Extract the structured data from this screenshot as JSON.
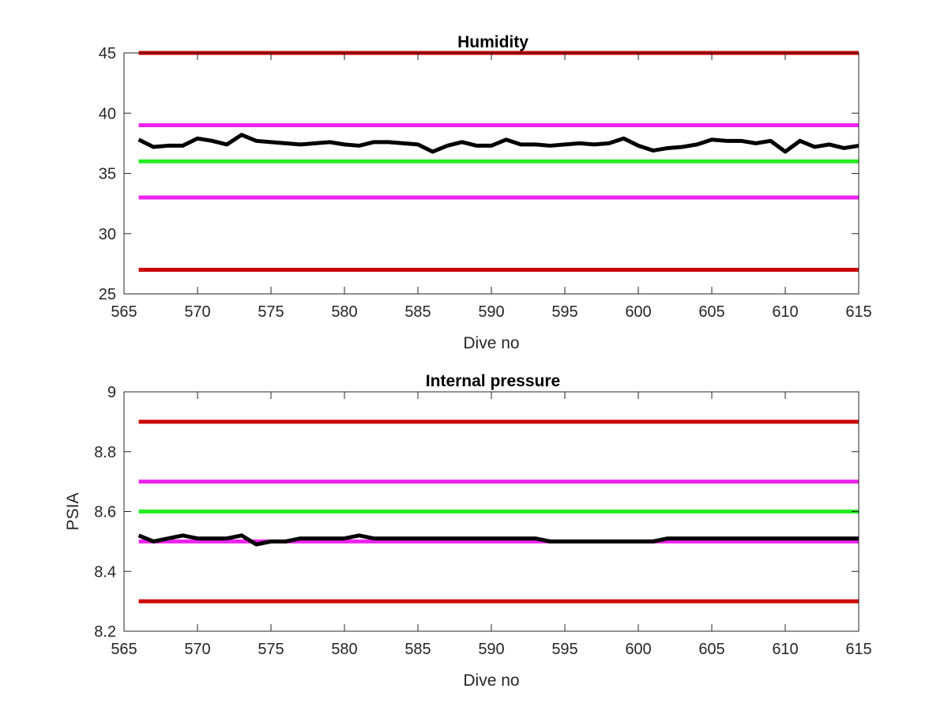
{
  "colors": {
    "limit_red": "#cc0000",
    "warn_magenta": "#ee22ee",
    "target_green": "#22ee22",
    "data_black": "#000000",
    "axis": "#262626"
  },
  "chart_data": [
    {
      "type": "line",
      "title": "Humidity",
      "xlabel": "Dive no",
      "ylabel": "",
      "xlim": [
        565,
        615
      ],
      "ylim": [
        25,
        45
      ],
      "xticks": [
        565,
        570,
        575,
        580,
        585,
        590,
        595,
        600,
        605,
        610,
        615
      ],
      "yticks": [
        25,
        30,
        35,
        40,
        45
      ],
      "grid": false,
      "reference_lines": [
        {
          "y": 45,
          "color": "red"
        },
        {
          "y": 39,
          "color": "magenta"
        },
        {
          "y": 36,
          "color": "green"
        },
        {
          "y": 33,
          "color": "magenta"
        },
        {
          "y": 27,
          "color": "red"
        }
      ],
      "series": [
        {
          "color": "black",
          "x": [
            566,
            567,
            568,
            569,
            570,
            571,
            572,
            573,
            574,
            575,
            576,
            577,
            578,
            579,
            580,
            581,
            582,
            583,
            584,
            585,
            586,
            587,
            588,
            589,
            590,
            591,
            592,
            593,
            594,
            595,
            596,
            597,
            598,
            599,
            600,
            601,
            602,
            603,
            604,
            605,
            606,
            607,
            608,
            609,
            610,
            611,
            612,
            613,
            614,
            615
          ],
          "y": [
            37.8,
            37.2,
            37.3,
            37.3,
            37.9,
            37.7,
            37.4,
            38.2,
            37.7,
            37.6,
            37.5,
            37.4,
            37.5,
            37.6,
            37.4,
            37.3,
            37.6,
            37.6,
            37.5,
            37.4,
            36.8,
            37.3,
            37.6,
            37.3,
            37.3,
            37.8,
            37.4,
            37.4,
            37.3,
            37.4,
            37.5,
            37.4,
            37.5,
            37.9,
            37.3,
            36.9,
            37.1,
            37.2,
            37.4,
            37.8,
            37.7,
            37.7,
            37.5,
            37.7,
            36.8,
            37.7,
            37.2,
            37.4,
            37.1,
            37.3
          ]
        }
      ]
    },
    {
      "type": "line",
      "title": "Internal pressure",
      "xlabel": "Dive no",
      "ylabel": "PSIA",
      "xlim": [
        565,
        615
      ],
      "ylim": [
        8.2,
        9.0
      ],
      "xticks": [
        565,
        570,
        575,
        580,
        585,
        590,
        595,
        600,
        605,
        610,
        615
      ],
      "yticks": [
        8.2,
        8.4,
        8.6,
        8.8,
        9
      ],
      "grid": false,
      "reference_lines": [
        {
          "y": 8.9,
          "color": "red"
        },
        {
          "y": 8.7,
          "color": "magenta"
        },
        {
          "y": 8.6,
          "color": "green"
        },
        {
          "y": 8.5,
          "color": "magenta"
        },
        {
          "y": 8.3,
          "color": "red"
        }
      ],
      "series": [
        {
          "color": "black",
          "x": [
            566,
            567,
            568,
            569,
            570,
            571,
            572,
            573,
            574,
            575,
            576,
            577,
            578,
            579,
            580,
            581,
            582,
            583,
            584,
            585,
            586,
            587,
            588,
            589,
            590,
            591,
            592,
            593,
            594,
            595,
            596,
            597,
            598,
            599,
            600,
            601,
            602,
            603,
            604,
            605,
            606,
            607,
            608,
            609,
            610,
            611,
            612,
            613,
            614,
            615
          ],
          "y": [
            8.52,
            8.5,
            8.51,
            8.52,
            8.51,
            8.51,
            8.51,
            8.52,
            8.49,
            8.5,
            8.5,
            8.51,
            8.51,
            8.51,
            8.51,
            8.52,
            8.51,
            8.51,
            8.51,
            8.51,
            8.51,
            8.51,
            8.51,
            8.51,
            8.51,
            8.51,
            8.51,
            8.51,
            8.5,
            8.5,
            8.5,
            8.5,
            8.5,
            8.5,
            8.5,
            8.5,
            8.51,
            8.51,
            8.51,
            8.51,
            8.51,
            8.51,
            8.51,
            8.51,
            8.51,
            8.51,
            8.51,
            8.51,
            8.51,
            8.51
          ]
        }
      ]
    }
  ]
}
